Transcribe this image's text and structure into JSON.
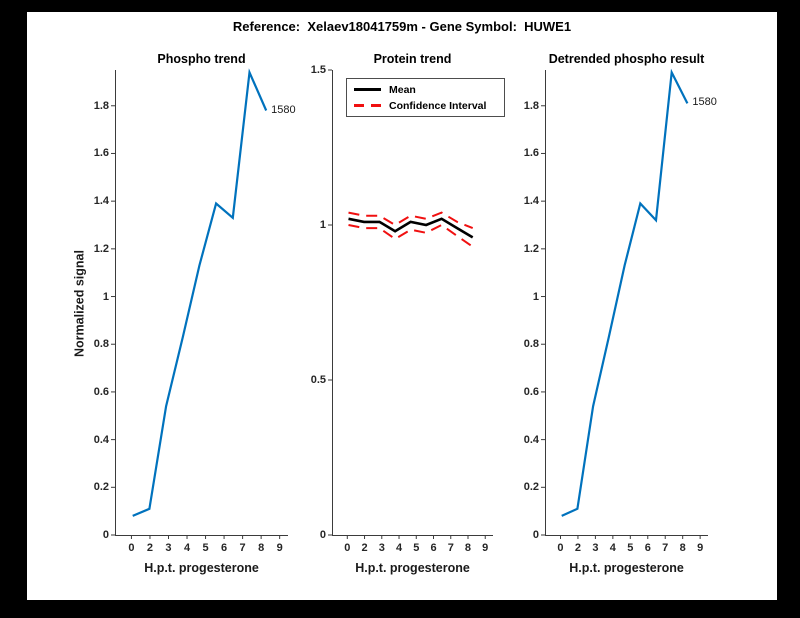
{
  "page": {
    "background_color": "#000000",
    "figure_background_color": "#ffffff"
  },
  "header": {
    "title": "Reference:  Xelaev18041759m - Gene Symbol:  HUWE1"
  },
  "colors": {
    "line_blue": "#0072bd",
    "mean_black": "#000000",
    "ci_red": "#f01010",
    "axis_gray": "#3b3b3b",
    "tick_text": "#262626"
  },
  "chart_data": [
    {
      "id": "phospho-trend",
      "type": "line",
      "title": "Phospho trend",
      "xlabel": "H.p.t. progesterone",
      "ylabel": "Normalized signal",
      "x": [
        0,
        2,
        3,
        4,
        5,
        6,
        7,
        8,
        9
      ],
      "x_tick_labels": [
        "0",
        "2",
        "3",
        "4",
        "5",
        "6",
        "7",
        "8",
        "9"
      ],
      "y_ticks": [
        0,
        0.2,
        0.4,
        0.6,
        0.8,
        1,
        1.2,
        1.4,
        1.6,
        1.8
      ],
      "y_tick_labels": [
        "0",
        "0.2",
        "0.4",
        "0.6",
        "0.8",
        "1",
        "1.2",
        "1.4",
        "1.6",
        "1.8"
      ],
      "ylim": [
        0,
        1.95
      ],
      "grid": false,
      "series": [
        {
          "name": "phospho-signal",
          "color": "#0072bd",
          "dash": false,
          "stroke_width": 2.2,
          "values": [
            0.08,
            0.11,
            0.54,
            0.83,
            1.13,
            1.39,
            1.33,
            1.94,
            1.78
          ]
        }
      ],
      "end_point_label": "1580"
    },
    {
      "id": "protein-trend",
      "type": "line",
      "title": "Protein trend",
      "xlabel": "H.p.t. progesterone",
      "x": [
        0,
        2,
        3,
        4,
        5,
        6,
        7,
        8,
        9
      ],
      "x_tick_labels": [
        "0",
        "2",
        "3",
        "4",
        "5",
        "6",
        "7",
        "8",
        "9"
      ],
      "y_ticks": [
        0,
        0.5,
        1,
        1.5
      ],
      "y_tick_labels": [
        "0",
        "0.5",
        "1",
        "1.5"
      ],
      "ylim": [
        0,
        1.5
      ],
      "grid": false,
      "legend": {
        "position": "north-inside",
        "entries": [
          {
            "label": "Mean",
            "color": "#000000",
            "dash": false
          },
          {
            "label": "Confidence Interval",
            "color": "#f01010",
            "dash": true
          }
        ]
      },
      "series": [
        {
          "name": "protein-mean",
          "color": "#000000",
          "dash": false,
          "stroke_width": 2.6,
          "values": [
            1.02,
            1.01,
            1.01,
            0.98,
            1.01,
            1.0,
            1.02,
            0.99,
            0.96
          ]
        },
        {
          "name": "confidence-upper",
          "color": "#f01010",
          "dash": true,
          "stroke_width": 2,
          "values": [
            1.04,
            1.03,
            1.03,
            1.0,
            1.03,
            1.02,
            1.04,
            1.01,
            0.99
          ]
        },
        {
          "name": "confidence-lower",
          "color": "#f01010",
          "dash": true,
          "stroke_width": 2,
          "values": [
            1.0,
            0.99,
            0.99,
            0.955,
            0.985,
            0.975,
            1.0,
            0.965,
            0.93
          ]
        }
      ]
    },
    {
      "id": "detrended-phospho-result",
      "type": "line",
      "title": "Detrended phospho result",
      "xlabel": "H.p.t. progesterone",
      "x": [
        0,
        2,
        3,
        4,
        5,
        6,
        7,
        8,
        9
      ],
      "x_tick_labels": [
        "0",
        "2",
        "3",
        "4",
        "5",
        "6",
        "7",
        "8",
        "9"
      ],
      "y_ticks": [
        0,
        0.2,
        0.4,
        0.6,
        0.8,
        1,
        1.2,
        1.4,
        1.6,
        1.8
      ],
      "y_tick_labels": [
        "0",
        "0.2",
        "0.4",
        "0.6",
        "0.8",
        "1",
        "1.2",
        "1.4",
        "1.6",
        "1.8"
      ],
      "ylim": [
        0,
        1.95
      ],
      "grid": false,
      "series": [
        {
          "name": "detrended-signal",
          "color": "#0072bd",
          "dash": false,
          "stroke_width": 2.2,
          "values": [
            0.08,
            0.11,
            0.54,
            0.83,
            1.13,
            1.39,
            1.32,
            1.94,
            1.81
          ]
        }
      ],
      "end_point_label": "1580"
    }
  ]
}
